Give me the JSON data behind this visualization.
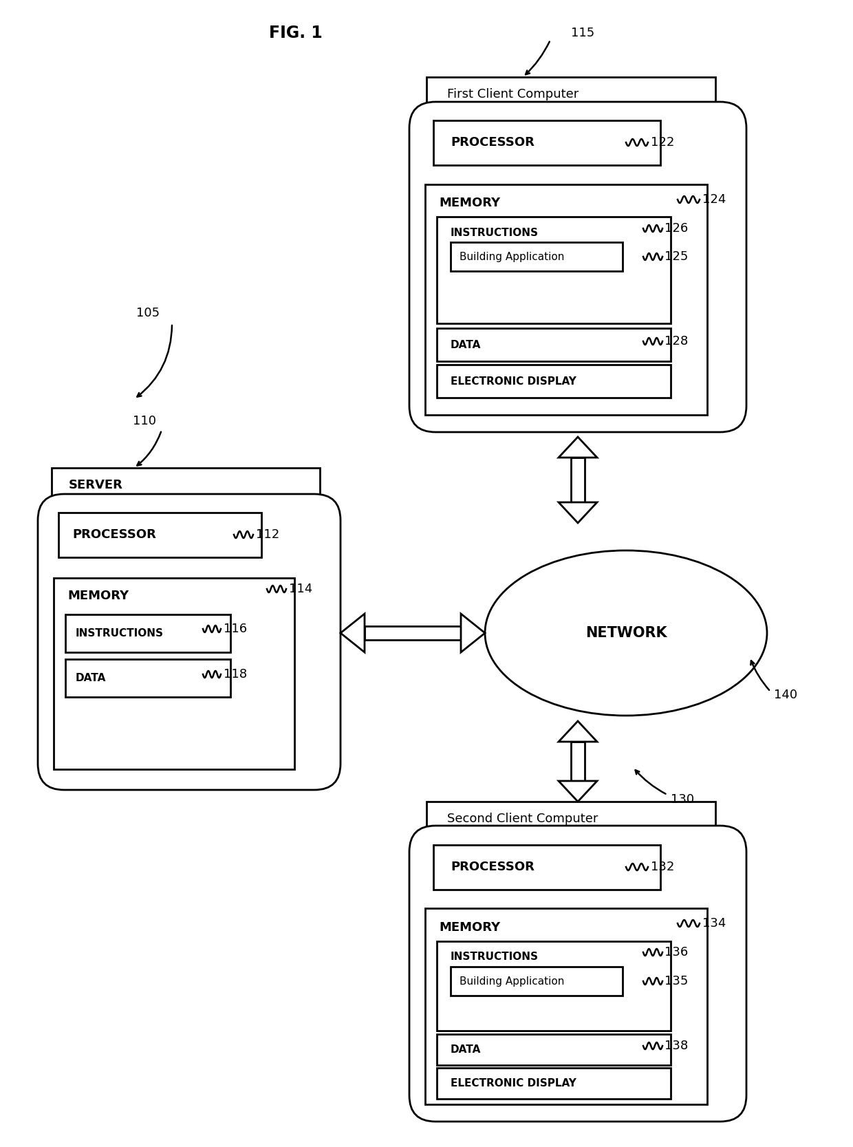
{
  "fig_width": 12.4,
  "fig_height": 16.67,
  "dpi": 100,
  "bg_color": "#ffffff",
  "lc": "#000000",
  "tc": "#000000",
  "labels": {
    "fig_title": "FIG. 1",
    "first_client": "First Client Computer",
    "second_client": "Second Client Computer",
    "server": "SERVER",
    "network": "NETWORK",
    "processor": "PROCESSOR",
    "memory": "MEMORY",
    "instructions": "INSTRUCTIONS",
    "building_app": "Building Application",
    "data": "DATA",
    "elec_display": "ELECTRONIC DISPLAY"
  }
}
